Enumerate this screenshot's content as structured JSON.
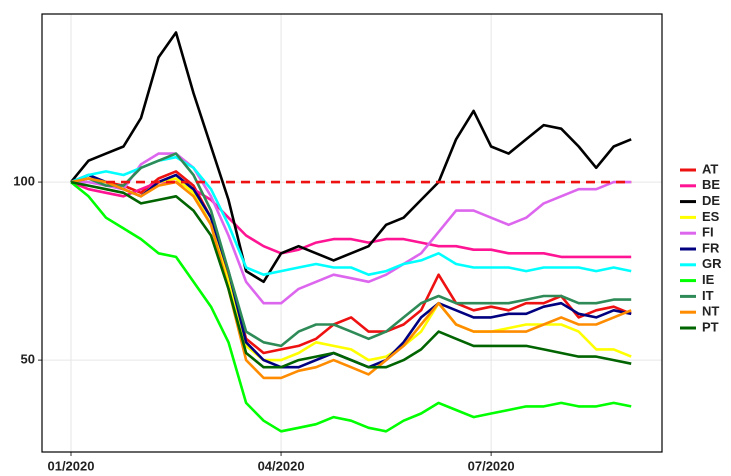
{
  "chart_data": {
    "type": "line",
    "x": [
      0,
      0.25,
      0.5,
      0.75,
      1,
      1.25,
      1.5,
      1.75,
      2,
      2.25,
      2.5,
      2.75,
      3,
      3.25,
      3.5,
      3.75,
      4,
      4.25,
      4.5,
      4.75,
      5,
      5.25,
      5.5,
      5.75,
      6,
      6.25,
      6.5,
      6.75,
      7,
      7.25,
      7.5,
      7.75,
      8
    ],
    "xlim": [
      -0.414,
      8.44
    ],
    "xticks": [
      {
        "value": 0,
        "label": "01/2020"
      },
      {
        "value": 3,
        "label": "04/2020"
      },
      {
        "value": 6,
        "label": "07/2020"
      }
    ],
    "ylim": [
      24.2,
      147.2
    ],
    "yticks": [
      50,
      100
    ],
    "grid": true,
    "reference_line": {
      "value": 100,
      "color": "#ee1111"
    },
    "legend": "right",
    "series": [
      {
        "name": "AT",
        "color": "#ee1111",
        "values": [
          100,
          101,
          100,
          99,
          97,
          101,
          103,
          99,
          90,
          74,
          56,
          52,
          53,
          54,
          56,
          60,
          62,
          58,
          58,
          60,
          64,
          74,
          66,
          64,
          65,
          64,
          66,
          66,
          68,
          62,
          64,
          65,
          63
        ]
      },
      {
        "name": "BE",
        "color": "#ff1493",
        "values": [
          100,
          98,
          97,
          96,
          98,
          100,
          100,
          98,
          95,
          90,
          85,
          82,
          80,
          81,
          83,
          84,
          84,
          83,
          84,
          84,
          83,
          82,
          82,
          81,
          81,
          80,
          80,
          80,
          79,
          79,
          79,
          79,
          79
        ]
      },
      {
        "name": "DE",
        "color": "#000000",
        "values": [
          100,
          106,
          108,
          110,
          118,
          135,
          142,
          125,
          110,
          95,
          75,
          72,
          80,
          82,
          80,
          78,
          80,
          82,
          88,
          90,
          95,
          100,
          112,
          120,
          110,
          108,
          112,
          116,
          115,
          110,
          104,
          110,
          112
        ]
      },
      {
        "name": "ES",
        "color": "#ffff00",
        "values": [
          100,
          101,
          100,
          98,
          96,
          100,
          101,
          97,
          88,
          72,
          54,
          50,
          50,
          52,
          55,
          54,
          53,
          50,
          51,
          54,
          58,
          66,
          60,
          58,
          58,
          59,
          60,
          60,
          60,
          58,
          53,
          53,
          51
        ]
      },
      {
        "name": "FI",
        "color": "#dd66ee",
        "values": [
          100,
          100,
          99,
          98,
          105,
          108,
          108,
          104,
          96,
          85,
          72,
          66,
          66,
          70,
          72,
          74,
          73,
          72,
          74,
          77,
          80,
          86,
          92,
          92,
          90,
          88,
          90,
          94,
          96,
          98,
          98,
          100,
          100
        ]
      },
      {
        "name": "FR",
        "color": "#000080",
        "values": [
          100,
          102,
          100,
          98,
          96,
          100,
          102,
          98,
          90,
          75,
          55,
          50,
          48,
          48,
          50,
          52,
          50,
          48,
          50,
          55,
          62,
          66,
          64,
          62,
          62,
          63,
          63,
          65,
          66,
          63,
          62,
          64,
          63
        ]
      },
      {
        "name": "GR",
        "color": "#00ffff",
        "values": [
          100,
          102,
          103,
          102,
          104,
          106,
          107,
          104,
          98,
          88,
          76,
          74,
          75,
          76,
          77,
          76,
          76,
          74,
          75,
          77,
          78,
          80,
          77,
          76,
          76,
          76,
          75,
          76,
          76,
          76,
          75,
          76,
          75
        ]
      },
      {
        "name": "IE",
        "color": "#00ff00",
        "values": [
          100,
          96,
          90,
          87,
          84,
          80,
          79,
          72,
          65,
          55,
          38,
          33,
          30,
          31,
          32,
          34,
          33,
          31,
          30,
          33,
          35,
          38,
          36,
          34,
          35,
          36,
          37,
          37,
          38,
          37,
          37,
          38,
          37
        ]
      },
      {
        "name": "IT",
        "color": "#2e8b57",
        "values": [
          100,
          101,
          99,
          99,
          104,
          106,
          108,
          102,
          92,
          75,
          58,
          55,
          54,
          58,
          60,
          60,
          58,
          56,
          58,
          62,
          66,
          68,
          66,
          66,
          66,
          66,
          67,
          68,
          68,
          66,
          66,
          67,
          67
        ]
      },
      {
        "name": "NT",
        "color": "#ff8c00",
        "values": [
          100,
          101,
          100,
          98,
          96,
          99,
          100,
          96,
          88,
          70,
          50,
          45,
          45,
          47,
          48,
          50,
          48,
          46,
          50,
          54,
          60,
          66,
          60,
          58,
          58,
          58,
          58,
          60,
          62,
          60,
          60,
          62,
          64
        ]
      },
      {
        "name": "PT",
        "color": "#006400",
        "values": [
          100,
          99,
          98,
          97,
          94,
          95,
          96,
          92,
          85,
          70,
          52,
          48,
          48,
          50,
          51,
          52,
          50,
          48,
          48,
          50,
          53,
          58,
          56,
          54,
          54,
          54,
          54,
          53,
          52,
          51,
          51,
          50,
          49
        ]
      }
    ]
  }
}
